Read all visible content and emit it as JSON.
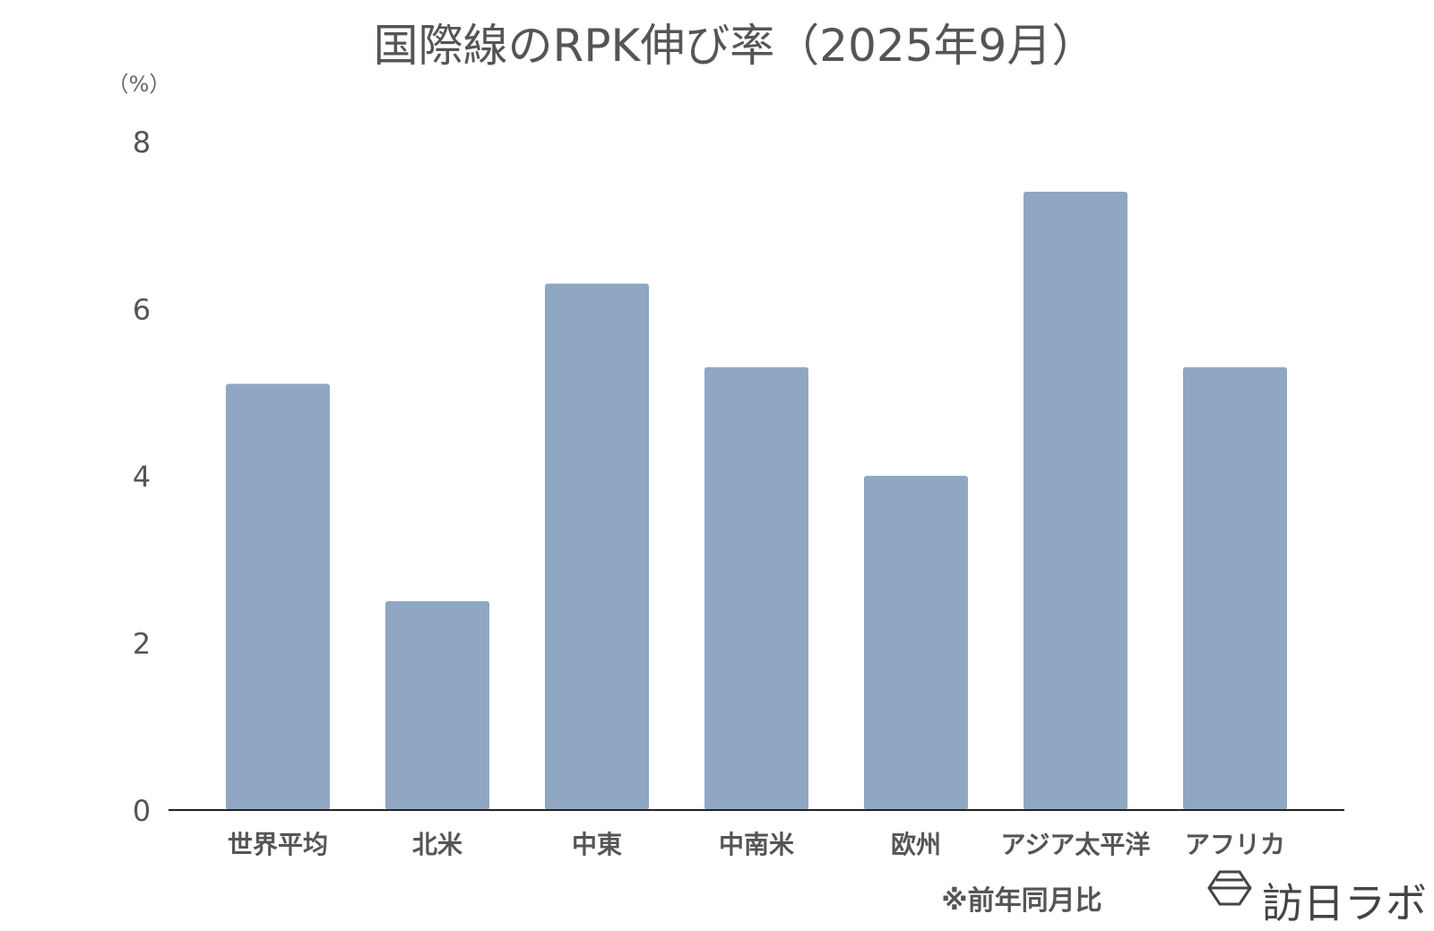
{
  "chart_data": {
    "type": "bar",
    "title": "国際線のRPK伸び率（2025年9月）",
    "ylabel": "（%）",
    "categories": [
      "世界平均",
      "北米",
      "中東",
      "中南米",
      "欧州",
      "アジア太平洋",
      "アフリカ"
    ],
    "values": [
      5.1,
      2.5,
      6.3,
      5.3,
      4.0,
      7.4,
      5.3
    ],
    "ylim": [
      0,
      8
    ],
    "yticks": [
      "0",
      "2",
      "4",
      "6",
      "8"
    ],
    "bar_color": "#8FA7C2",
    "grid": false,
    "legend": "none",
    "note": "※前年同月比"
  },
  "logo": {
    "text": "訪日ラボ",
    "icon": "hexagon-logo-icon"
  }
}
